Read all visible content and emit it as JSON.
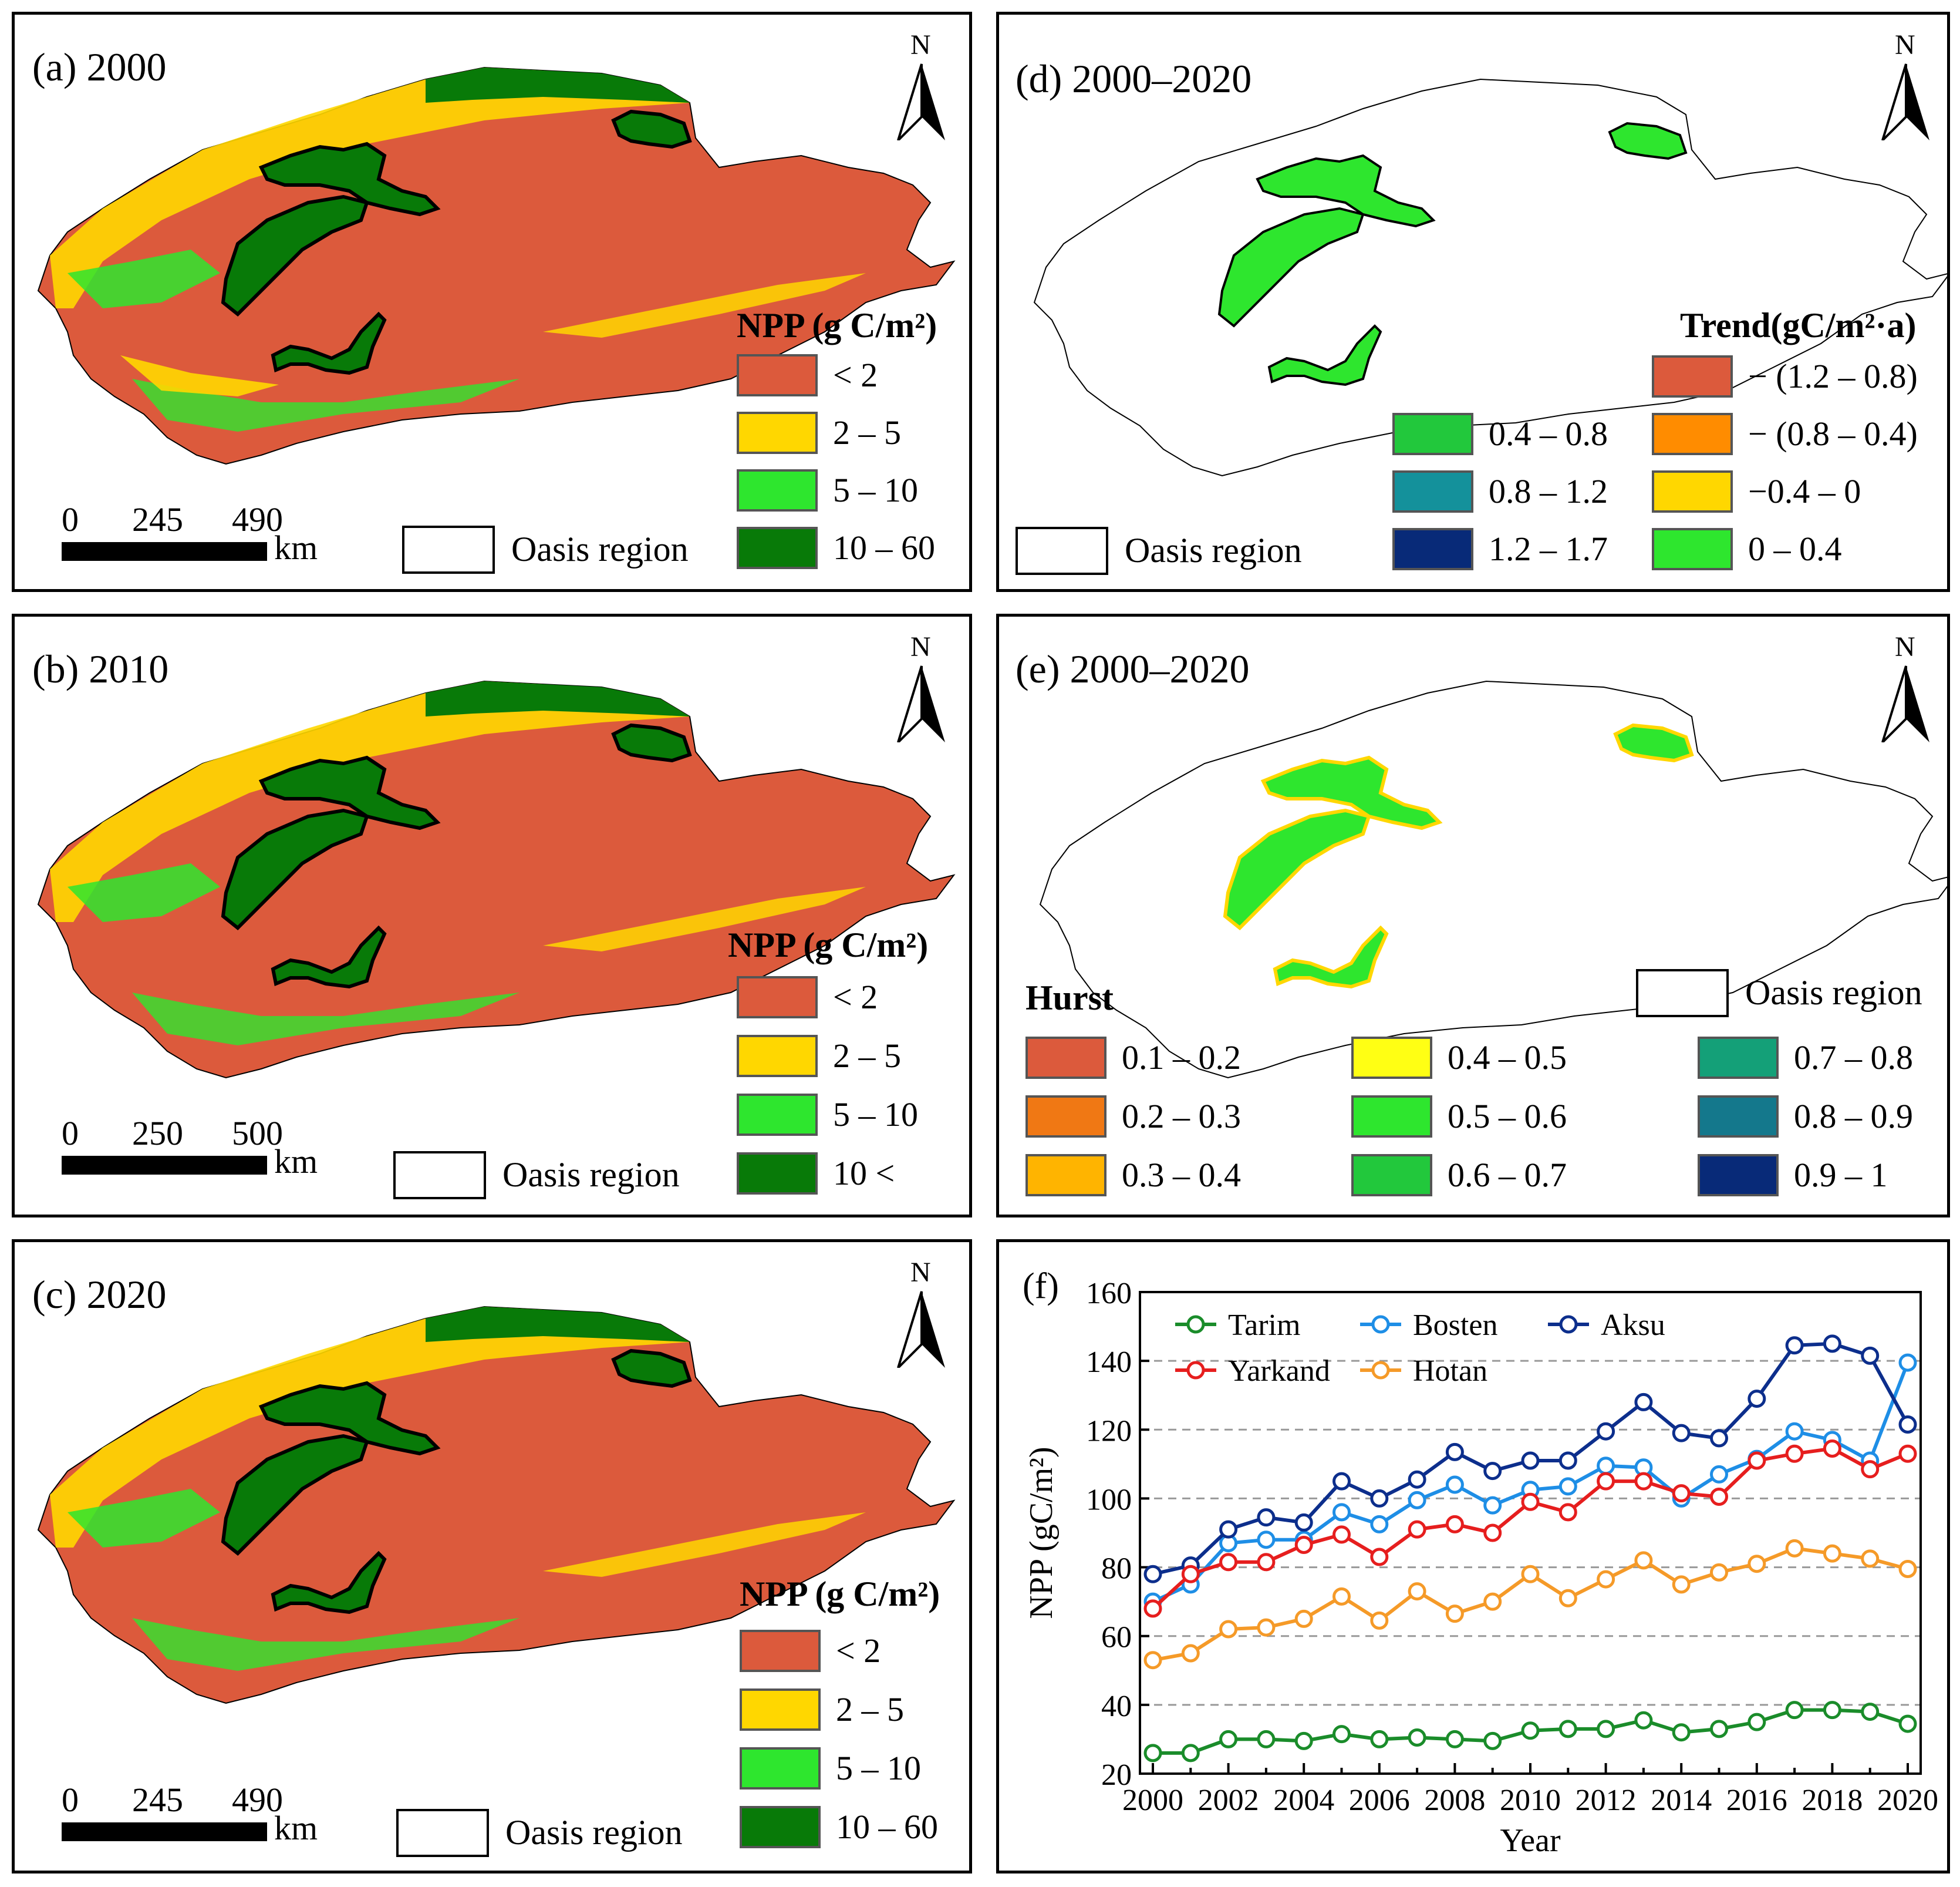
{
  "panels": {
    "a": {
      "title": "(a) 2000",
      "legend_title": "NPP (g C/m²)",
      "legend": [
        {
          "label": "< 2",
          "color": "#dc5a3c"
        },
        {
          "label": "2 – 5",
          "color": "#ffd700"
        },
        {
          "label": "5 – 10",
          "color": "#2ee62e"
        },
        {
          "label": "10 – 60",
          "color": "#087a08"
        }
      ],
      "scale_ticks": [
        "0",
        "245",
        "490"
      ],
      "scale_unit": "km",
      "oasis_label": "Oasis region",
      "north": "N"
    },
    "b": {
      "title": "(b) 2010",
      "legend_title": "NPP (g C/m²)",
      "legend": [
        {
          "label": "< 2",
          "color": "#dc5a3c"
        },
        {
          "label": "2 – 5",
          "color": "#ffd700"
        },
        {
          "label": "5 – 10",
          "color": "#2ee62e"
        },
        {
          "label": "10 <",
          "color": "#087a08"
        }
      ],
      "scale_ticks": [
        "0",
        "250",
        "500"
      ],
      "scale_unit": "km",
      "oasis_label": "Oasis region",
      "north": "N"
    },
    "c": {
      "title": "(c) 2020",
      "legend_title": "NPP (g C/m²)",
      "legend": [
        {
          "label": "< 2",
          "color": "#dc5a3c"
        },
        {
          "label": "2 – 5",
          "color": "#ffd700"
        },
        {
          "label": "5 – 10",
          "color": "#2ee62e"
        },
        {
          "label": "10 – 60",
          "color": "#087a08"
        }
      ],
      "scale_ticks": [
        "0",
        "245",
        "490"
      ],
      "scale_unit": "km",
      "oasis_label": "Oasis region",
      "north": "N"
    },
    "d": {
      "title": "(d) 2000–2020",
      "legend_title": "Trend(gC/m²·a)",
      "legend": [
        {
          "label": "− (1.2 – 0.8)",
          "color": "#dc5a3c"
        },
        {
          "label": "− (0.8 – 0.4)",
          "color": "#ff8c00"
        },
        {
          "label": "−0.4 – 0",
          "color": "#ffd700"
        },
        {
          "label": "0 – 0.4",
          "color": "#2ee62e"
        },
        {
          "label": "0.4 – 0.8",
          "color": "#22c83c"
        },
        {
          "label": "0.8 – 1.2",
          "color": "#14919b"
        },
        {
          "label": "1.2 – 1.7",
          "color": "#082a78"
        }
      ],
      "oasis_label": "Oasis region",
      "north": "N"
    },
    "e": {
      "title": "(e) 2000–2020",
      "legend_title": "Hurst",
      "legend": [
        {
          "label": "0.1 – 0.2",
          "color": "#dc5a3c"
        },
        {
          "label": "0.2 – 0.3",
          "color": "#f07814"
        },
        {
          "label": "0.3 – 0.4",
          "color": "#ffb400"
        },
        {
          "label": "0.4 – 0.5",
          "color": "#ffff14"
        },
        {
          "label": "0.5 – 0.6",
          "color": "#2ee62e"
        },
        {
          "label": "0.6 – 0.7",
          "color": "#22c83c"
        },
        {
          "label": "0.7 – 0.8",
          "color": "#14a078"
        },
        {
          "label": "0.8 – 0.9",
          "color": "#14788c"
        },
        {
          "label": "0.9 – 1",
          "color": "#082a78"
        }
      ],
      "oasis_label": "Oasis region",
      "north": "N"
    },
    "f": {
      "title": "(f)"
    }
  },
  "chart_data": {
    "type": "line",
    "xlabel": "Year",
    "ylabel": "NPP (gC/m²)",
    "ylim": [
      20,
      160
    ],
    "yticks": [
      20,
      40,
      60,
      80,
      100,
      120,
      140,
      160
    ],
    "xticks": [
      2000,
      2002,
      2004,
      2006,
      2008,
      2010,
      2012,
      2014,
      2016,
      2018,
      2020
    ],
    "grid": "horizontal dashed",
    "x": [
      2000,
      2001,
      2002,
      2003,
      2004,
      2005,
      2006,
      2007,
      2008,
      2009,
      2010,
      2011,
      2012,
      2013,
      2014,
      2015,
      2016,
      2017,
      2018,
      2019,
      2020
    ],
    "series": [
      {
        "name": "Tarim",
        "color": "#1a8c2a",
        "values": [
          26,
          26,
          30,
          30,
          29.5,
          31.5,
          30,
          30.5,
          30,
          29.5,
          32.5,
          33,
          33,
          35.5,
          32,
          33,
          35,
          38.5,
          38.5,
          38,
          34.5
        ]
      },
      {
        "name": "Bosten",
        "color": "#1e8ee6",
        "values": [
          70,
          75,
          87,
          88,
          88,
          96,
          92.5,
          99.5,
          104,
          98,
          102.5,
          103.5,
          109.5,
          109,
          100,
          107,
          111.5,
          119.5,
          117,
          111,
          139.5
        ]
      },
      {
        "name": "Aksu",
        "color": "#0c2e8c",
        "values": [
          78,
          80.5,
          91,
          94.5,
          93,
          105,
          100,
          105.5,
          113.5,
          108,
          111,
          111,
          119.5,
          128,
          119,
          117.5,
          129,
          144.5,
          145,
          141.5,
          121.5
        ]
      },
      {
        "name": "Yarkand",
        "color": "#e61e1e",
        "values": [
          68,
          78,
          81.5,
          81.5,
          86.5,
          89.5,
          83,
          91,
          92.5,
          90,
          99,
          96,
          105,
          105,
          101.5,
          100.5,
          111,
          113,
          114.5,
          108.5,
          113
        ]
      },
      {
        "name": "Hotan",
        "color": "#f59a28",
        "values": [
          53,
          55,
          62,
          62.5,
          65,
          71.5,
          64.5,
          73,
          66.5,
          70,
          78,
          71,
          76.5,
          82,
          75,
          78.5,
          81,
          85.5,
          84,
          82.5,
          79.5
        ]
      }
    ]
  }
}
